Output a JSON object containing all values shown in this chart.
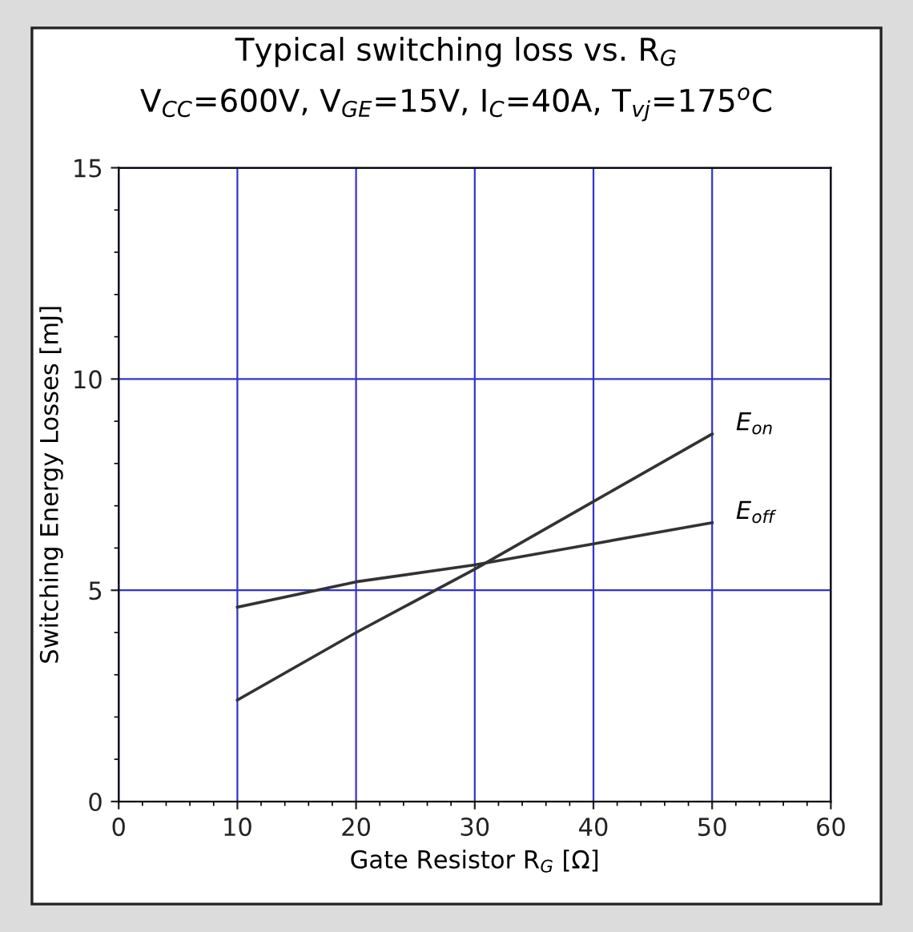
{
  "chart_data": {
    "type": "line",
    "title": "Typical switching loss vs. R$_{G}$",
    "subtitle": "V$_{CC}$=600V, V$_{GE}$=15V, I$_{C}$=40A, T$_{vj}$=175$^{o}$C",
    "xlabel": "Gate Resistor R$_{G}$ [Ω]",
    "ylabel": "Switching Energy Losses [mJ]",
    "x": [
      10,
      20,
      30,
      40,
      50
    ],
    "series": [
      {
        "name": "E$_{on}$",
        "color": "#333333",
        "values": [
          2.4,
          4.0,
          5.5,
          7.1,
          8.7
        ]
      },
      {
        "name": "E$_{off}$",
        "color": "#333333",
        "values": [
          4.6,
          5.2,
          5.6,
          6.1,
          6.6
        ]
      }
    ],
    "xlim": [
      0,
      60
    ],
    "xticks": [
      0,
      10,
      20,
      30,
      40,
      50,
      60
    ],
    "ylim": [
      0,
      15
    ],
    "yticks": [
      0,
      5,
      10,
      15
    ],
    "grid": true,
    "legend": false,
    "marker": "none",
    "line_style": "solid"
  }
}
